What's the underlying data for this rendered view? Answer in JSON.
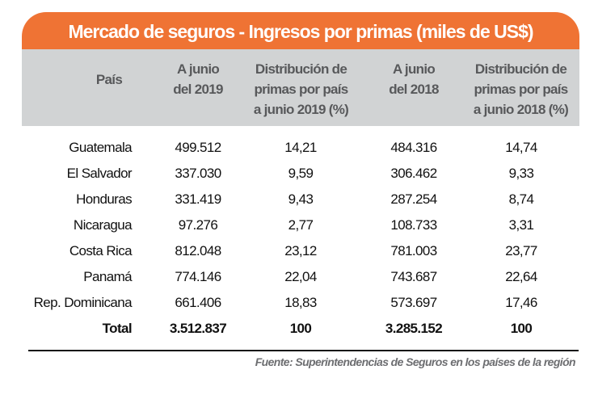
{
  "title": "Mercado de seguros - Ingresos por primas (miles de US$)",
  "headers": [
    "País",
    "A junio\ndel 2019",
    "Distribución de\nprimas por país\na junio 2019 (%)",
    "A junio\ndel 2018",
    "Distribución de\nprimas por país\na junio 2018 (%)"
  ],
  "rows": [
    [
      "Guatemala",
      "499.512",
      "14,21",
      "484.316",
      "14,74"
    ],
    [
      "El Salvador",
      "337.030",
      "9,59",
      "306.462",
      "9,33"
    ],
    [
      "Honduras",
      "331.419",
      "9,43",
      "287.254",
      "8,74"
    ],
    [
      "Nicaragua",
      "97.276",
      "2,77",
      "108.733",
      "3,31"
    ],
    [
      "Costa Rica",
      "812.048",
      "23,12",
      "781.003",
      "23,77"
    ],
    [
      "Panamá",
      "774.146",
      "22,04",
      "743.687",
      "22,64"
    ],
    [
      "Rep. Dominicana",
      "661.406",
      "18,83",
      "573.697",
      "17,46"
    ],
    [
      "Total",
      "3.512.837",
      "100",
      "3.285.152",
      "100"
    ]
  ],
  "source": "Fuente: Superintendencias de Seguros en los países de la región",
  "colors": {
    "title_bg": "#ef7334",
    "header_bg": "#d1d3d4",
    "header_text": "#58595b"
  }
}
